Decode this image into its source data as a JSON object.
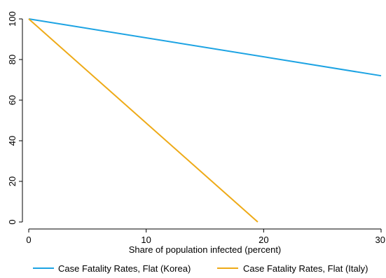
{
  "chart_data": {
    "type": "line",
    "xlabel": "Share of population infected (percent)",
    "ylabel": "",
    "xlim": [
      0,
      30
    ],
    "ylim": [
      0,
      100
    ],
    "x_ticks": [
      0,
      10,
      20,
      30
    ],
    "y_ticks": [
      0,
      20,
      40,
      60,
      80,
      100
    ],
    "x_tick_labels": [
      "0",
      "10",
      "20",
      "30"
    ],
    "y_tick_labels": [
      "0",
      "20",
      "40",
      "60",
      "80",
      "100"
    ],
    "grid": false,
    "legend_position": "bottom",
    "series": [
      {
        "name": "Case Fatality Rates, Flat (Korea)",
        "color": "#1ca3e3",
        "x": [
          0,
          30
        ],
        "y": [
          100,
          72
        ]
      },
      {
        "name": "Case Fatality Rates, Flat (Italy)",
        "color": "#eeaa17",
        "x": [
          0,
          19.5
        ],
        "y": [
          100,
          0
        ]
      }
    ]
  }
}
